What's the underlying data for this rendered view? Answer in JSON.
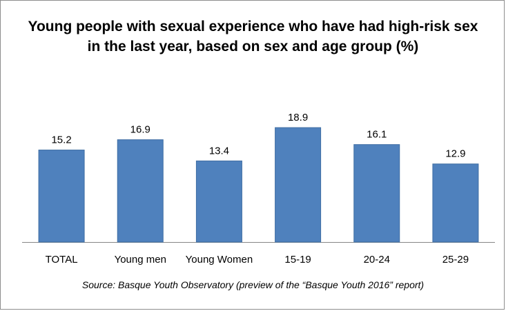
{
  "chart_data": {
    "type": "bar",
    "title": "Young people with sexual experience who have had high-risk sex in the last year, based on sex and age group (%)",
    "categories": [
      "TOTAL",
      "Young men",
      "Young Women",
      "15-19",
      "20-24",
      "25-29"
    ],
    "values": [
      15.2,
      16.9,
      13.4,
      18.9,
      16.1,
      12.9
    ],
    "value_labels": [
      "15.2",
      "16.9",
      "13.4",
      "18.9",
      "16.1",
      "12.9"
    ],
    "ylim": [
      0,
      20
    ],
    "grid": false,
    "legend": "none",
    "bar_color": "#4f81bd",
    "source": "Source: Basque Youth Observatory (preview of the “Basque Youth 2016” report)"
  }
}
